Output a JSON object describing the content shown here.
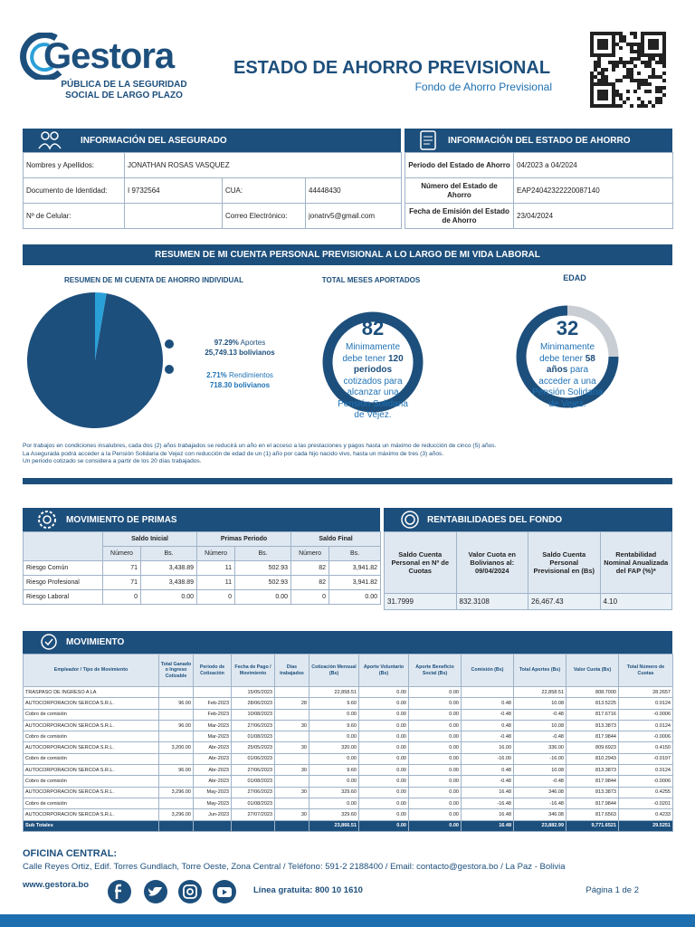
{
  "header": {
    "brand": "Gestora",
    "brand_sub1": "PÚBLICA DE LA SEGURIDAD",
    "brand_sub2": "SOCIAL DE LARGO PLAZO",
    "title": "ESTADO DE AHORRO PREVISIONAL",
    "subtitle": "Fondo de Ahorro Previsional"
  },
  "insured": {
    "title": "INFORMACIÓN DEL ASEGURADO",
    "name_label": "Nombres y Apellidos:",
    "name": "JONATHAN ROSAS VASQUEZ",
    "id_label": "Documento de Identidad:",
    "id": "I 9732564",
    "cua_label": "CUA:",
    "cua": "44448430",
    "phone_label": "Nº de Celular:",
    "email_label": "Correo Electrónico:",
    "email": "jonatrv5@gmail.com"
  },
  "statement": {
    "title": "INFORMACIÓN DEL ESTADO DE AHORRO",
    "rows": [
      {
        "label": "Periodo del Estado de Ahorro",
        "value": "04/2023 a 04/2024"
      },
      {
        "label": "Número del Estado de Ahorro",
        "value": "EAP24042322220087140"
      },
      {
        "label": "Fecha de Emisión del Estado de Ahorro",
        "value": "23/04/2024"
      }
    ]
  },
  "summary": {
    "title": "RESUMEN DE MI CUENTA PERSONAL PREVISIONAL A LO LARGO DE MI VIDA LABORAL",
    "pie_title": "RESUMEN DE MI CUENTA DE AHORRO INDIVIDUAL",
    "segments": [
      {
        "value": 97.29,
        "label": "97.29%",
        "name": "Aportes",
        "amount": "25,749.13 bolivianos"
      },
      {
        "value": 2.71,
        "label": "2.71%",
        "name": "Rendimientos",
        "amount": "718.30 bolivianos"
      }
    ],
    "months": {
      "title": "TOTAL MESES APORTADOS",
      "value": 82,
      "text1": "Minimamente debe tener",
      "bold": "120 periodos",
      "text2": "cotizados para alcanzar una Pensión Solidaria de Vejez."
    },
    "age": {
      "title": "EDAD",
      "value": 32,
      "text1": "Minimamente debe tener",
      "bold": "58 años",
      "text2": "para acceder a una Pensión Solidaria de Vejez."
    },
    "notes": [
      "Por trabajos en condiciones insalubres, cada dos (2) años trabajados se reducirá un año en el acceso a las prestaciones y pagos hasta un máximo de reducción de cinco (5) años.",
      "La Asegurada podrá acceder a la Pensión Solidaria de Vejez con reducción de edad de un (1) año por cada hijo nacido vivo, hasta un máximo de tres (3) años.",
      "Un periodo cotizado se considera a partir de los 20 días trabajados."
    ]
  },
  "premiums": {
    "title": "MOVIMIENTO DE PRIMAS",
    "groups": [
      "Saldo Inicial",
      "Primas Periodo",
      "Saldo Final"
    ],
    "sub_cols": [
      "Número",
      "Bs.",
      "Número",
      "Bs.",
      "Número",
      "Bs."
    ],
    "rows": [
      [
        "Riesgo Común",
        "71",
        "3,438.89",
        "11",
        "502.93",
        "82",
        "3,941.82"
      ],
      [
        "Riesgo Profesional",
        "71",
        "3,438.89",
        "11",
        "502.93",
        "82",
        "3,941.82"
      ],
      [
        "Riesgo Laboral",
        "0",
        "0.00",
        "0",
        "0.00",
        "0",
        "0.00"
      ]
    ]
  },
  "returns": {
    "title": "RENTABILIDADES DEL FONDO",
    "headers": [
      "Saldo Cuenta Personal en Nº de Cuotas",
      "Valor Cuota en Bolivianos al: 09/04/2024",
      "Saldo Cuenta Personal Previsional en (Bs)",
      "Rentabilidad Nominal Anualizada del FAP (%)*"
    ],
    "values": [
      "31.7999",
      "832.3108",
      "26,467.43",
      "4.10"
    ]
  },
  "movements": {
    "title": "MOVIMIENTO",
    "headers": [
      "Empleador / Tipo de Movimiento",
      "Total Ganado o Ingreso Cotizable",
      "Periodo de Cotización",
      "Fecha de Pago / Movimiento",
      "Días trabajados",
      "Cotización Mensual (Bs)",
      "Aporte Voluntario (Bs)",
      "Aporte Beneficio Social (Bs)",
      "Comisión (Bs)",
      "Total Aportes (Bs)",
      "Valor Cuota (Bs)",
      "Total Número de Cuotas"
    ],
    "rows": [
      [
        "TRASPASO DE INGRESO A LA",
        null,
        null,
        "15/05/2023",
        null,
        "22,858.51",
        "0.00",
        "0.00",
        null,
        "22,858.51",
        "808.7000",
        "28.2657"
      ],
      [
        "AUTOCORPORACION SERCOA S.R.L.",
        "96.00",
        "Feb-2023",
        "28/06/2023",
        "28",
        "9.60",
        "0.00",
        "0.00",
        "0.48",
        "10.08",
        "813.5225",
        "0.0124"
      ],
      [
        "Cobro de comisión",
        null,
        "Feb-2023",
        "10/08/2023",
        null,
        "0.00",
        "0.00",
        "0.00",
        "-0.48",
        "-0.48",
        "817.6716",
        "-0.0006"
      ],
      [
        "AUTOCORPORACION SERCOA S.R.L.",
        "96.00",
        "Mar-2023",
        "27/06/2023",
        "30",
        "9.60",
        "0.00",
        "0.00",
        "0.48",
        "10.08",
        "813.3873",
        "0.0124"
      ],
      [
        "Cobro de comisión",
        null,
        "Mar-2023",
        "01/08/2023",
        null,
        "0.00",
        "0.00",
        "0.00",
        "-0.48",
        "-0.48",
        "817.9844",
        "-0.0006"
      ],
      [
        "AUTOCORPORACION SERCOA S.R.L.",
        "3,200.00",
        "Abr-2023",
        "25/05/2023",
        "30",
        "320.00",
        "0.00",
        "0.00",
        "16.00",
        "336.00",
        "809.6923",
        "0.4150"
      ],
      [
        "Cobro de comisión",
        null,
        "Abr-2023",
        "01/06/2023",
        null,
        "0.00",
        "0.00",
        "0.00",
        "-16.00",
        "-16.00",
        "810.2943",
        "-0.0197"
      ],
      [
        "AUTOCORPORACION SERCOA S.R.L.",
        "96.00",
        "Abr-2023",
        "27/06/2023",
        "30",
        "9.60",
        "0.00",
        "0.00",
        "0.48",
        "10.08",
        "813.3873",
        "0.0124"
      ],
      [
        "Cobro de comisión",
        null,
        "Abr-2023",
        "01/08/2023",
        null,
        "0.00",
        "0.00",
        "0.00",
        "-0.48",
        "-0.48",
        "817.9844",
        "-0.0006"
      ],
      [
        "AUTOCORPORACION SERCOA S.R.L.",
        "3,296.00",
        "May-2023",
        "27/06/2023",
        "30",
        "329.60",
        "0.00",
        "0.00",
        "16.48",
        "346.08",
        "813.3873",
        "0.4255"
      ],
      [
        "Cobro de comisión",
        null,
        "May-2023",
        "01/08/2023",
        null,
        "0.00",
        "0.00",
        "0.00",
        "-16.48",
        "-16.48",
        "817.9844",
        "-0.0201"
      ],
      [
        "AUTOCORPORACION SERCOA S.R.L.",
        "3,296.00",
        "Jun-2023",
        "27/07/2023",
        "30",
        "329.60",
        "0.00",
        "0.00",
        "16.48",
        "346.08",
        "817.6563",
        "0.4233"
      ]
    ],
    "totals": [
      "Sub Totales",
      null,
      null,
      null,
      null,
      "23,866.51",
      "0.00",
      "0.00",
      "16.48",
      "23,882.99",
      "9,771.6521",
      "29.5251"
    ]
  },
  "footer": {
    "office_title": "OFICINA CENTRAL:",
    "address": "Calle Reyes Ortiz, Edif. Torres Gundlach, Torre Oeste, Zona Central / Teléfono: 591-2 2188400 / Email: contacto@gestora.bo / La Paz - Bolivia",
    "website": "www.gestora.bo",
    "hotline": "Línea gratuita: 800 10 1610",
    "page": "Página 1 de 2"
  }
}
